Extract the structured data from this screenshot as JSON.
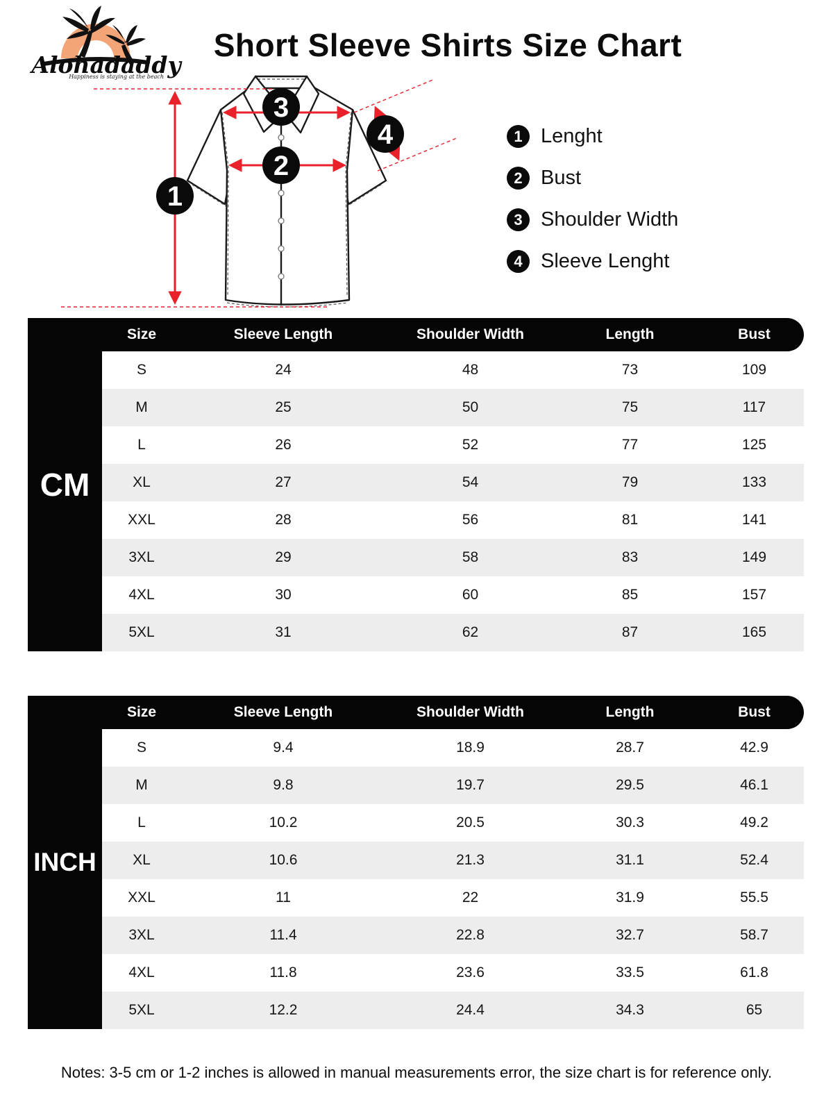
{
  "brand": {
    "name": "Alohadaddy",
    "tagline": "Happiness is staying at the beach"
  },
  "page_title": "Short Sleeve Shirts Size Chart",
  "diagram": {
    "legend": [
      {
        "num": "1",
        "label": "Lenght"
      },
      {
        "num": "2",
        "label": "Bust"
      },
      {
        "num": "3",
        "label": "Shoulder Width"
      },
      {
        "num": "4",
        "label": "Sleeve Lenght"
      }
    ]
  },
  "tables": [
    {
      "unit_label": "CM",
      "columns": [
        "Size",
        "Sleeve Length",
        "Shoulder Width",
        "Length",
        "Bust"
      ],
      "rows": [
        [
          "S",
          "24",
          "48",
          "73",
          "109"
        ],
        [
          "M",
          "25",
          "50",
          "75",
          "117"
        ],
        [
          "L",
          "26",
          "52",
          "77",
          "125"
        ],
        [
          "XL",
          "27",
          "54",
          "79",
          "133"
        ],
        [
          "XXL",
          "28",
          "56",
          "81",
          "141"
        ],
        [
          "3XL",
          "29",
          "58",
          "83",
          "149"
        ],
        [
          "4XL",
          "30",
          "60",
          "85",
          "157"
        ],
        [
          "5XL",
          "31",
          "62",
          "87",
          "165"
        ]
      ]
    },
    {
      "unit_label": "INCH",
      "columns": [
        "Size",
        "Sleeve Length",
        "Shoulder Width",
        "Length",
        "Bust"
      ],
      "rows": [
        [
          "S",
          "9.4",
          "18.9",
          "28.7",
          "42.9"
        ],
        [
          "M",
          "9.8",
          "19.7",
          "29.5",
          "46.1"
        ],
        [
          "L",
          "10.2",
          "20.5",
          "30.3",
          "49.2"
        ],
        [
          "XL",
          "10.6",
          "21.3",
          "31.1",
          "52.4"
        ],
        [
          "XXL",
          "11",
          "22",
          "31.9",
          "55.5"
        ],
        [
          "3XL",
          "11.4",
          "22.8",
          "32.7",
          "58.7"
        ],
        [
          "4XL",
          "11.8",
          "23.6",
          "33.5",
          "61.8"
        ],
        [
          "5XL",
          "12.2",
          "24.4",
          "34.3",
          "65"
        ]
      ]
    }
  ],
  "notes": "Notes: 3-5 cm or 1-2 inches is allowed in manual measurements error, the size chart is for reference only.",
  "colors": {
    "accent_red": "#e8212b",
    "table_black": "#050505",
    "stripe_gray": "#ededed",
    "logo_orange": "#f4a578"
  }
}
